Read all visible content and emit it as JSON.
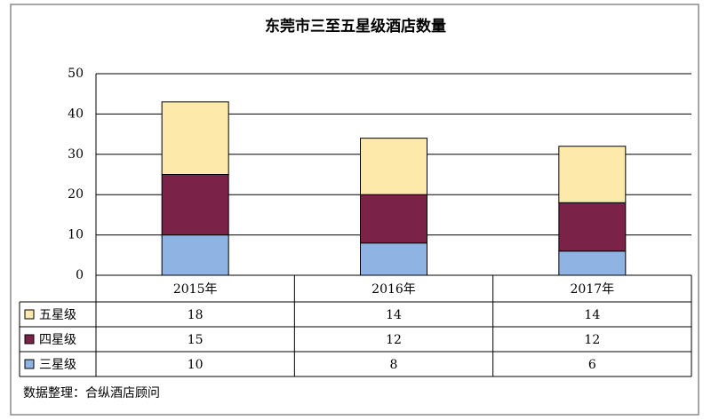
{
  "chart_data": {
    "type": "stacked-bar",
    "title": "东莞市三至五星级酒店数量",
    "categories": [
      "2015年",
      "2016年",
      "2017年"
    ],
    "series": [
      {
        "name": "五星级",
        "color": "#fde9a9",
        "values": [
          18,
          14,
          14
        ]
      },
      {
        "name": "四星级",
        "color": "#7a2248",
        "values": [
          15,
          12,
          12
        ]
      },
      {
        "name": "三星级",
        "color": "#8fb4e3",
        "values": [
          10,
          8,
          6
        ]
      }
    ],
    "ylim": [
      0,
      50
    ],
    "yticks": [
      0,
      10,
      20,
      30,
      40,
      50
    ],
    "grid": true,
    "source": "数据整理：合纵酒店顾问"
  }
}
